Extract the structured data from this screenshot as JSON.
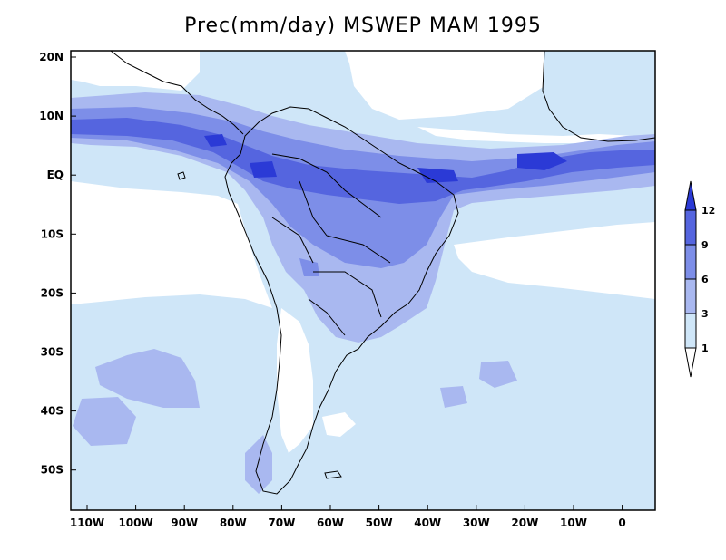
{
  "title": "Prec(mm/day) MSWEP MAM 1995",
  "latitude_labels": [
    "20N",
    "10N",
    "EQ",
    "10S",
    "20S",
    "30S",
    "40S",
    "50S"
  ],
  "longitude_labels": [
    "110W",
    "100W",
    "90W",
    "80W",
    "70W",
    "60W",
    "50W",
    "40W",
    "30W",
    "20W",
    "10W",
    "0"
  ],
  "colorbar": {
    "levels": [
      "1",
      "3",
      "6",
      "9",
      "12"
    ],
    "bins": [
      {
        "range": "below 1",
        "color": "#ffffff"
      },
      {
        "range": "1-3",
        "color": "#cfe6f8"
      },
      {
        "range": "3-6",
        "color": "#a9b8f0"
      },
      {
        "range": "6-9",
        "color": "#7d8ee8"
      },
      {
        "range": "9-12",
        "color": "#5565df"
      },
      {
        "range": "above 12",
        "color": "#2b3ad6"
      }
    ]
  },
  "colors": {
    "ocean_background": "#cfe6f8",
    "coastline": "#000000",
    "frame": "#000000"
  }
}
